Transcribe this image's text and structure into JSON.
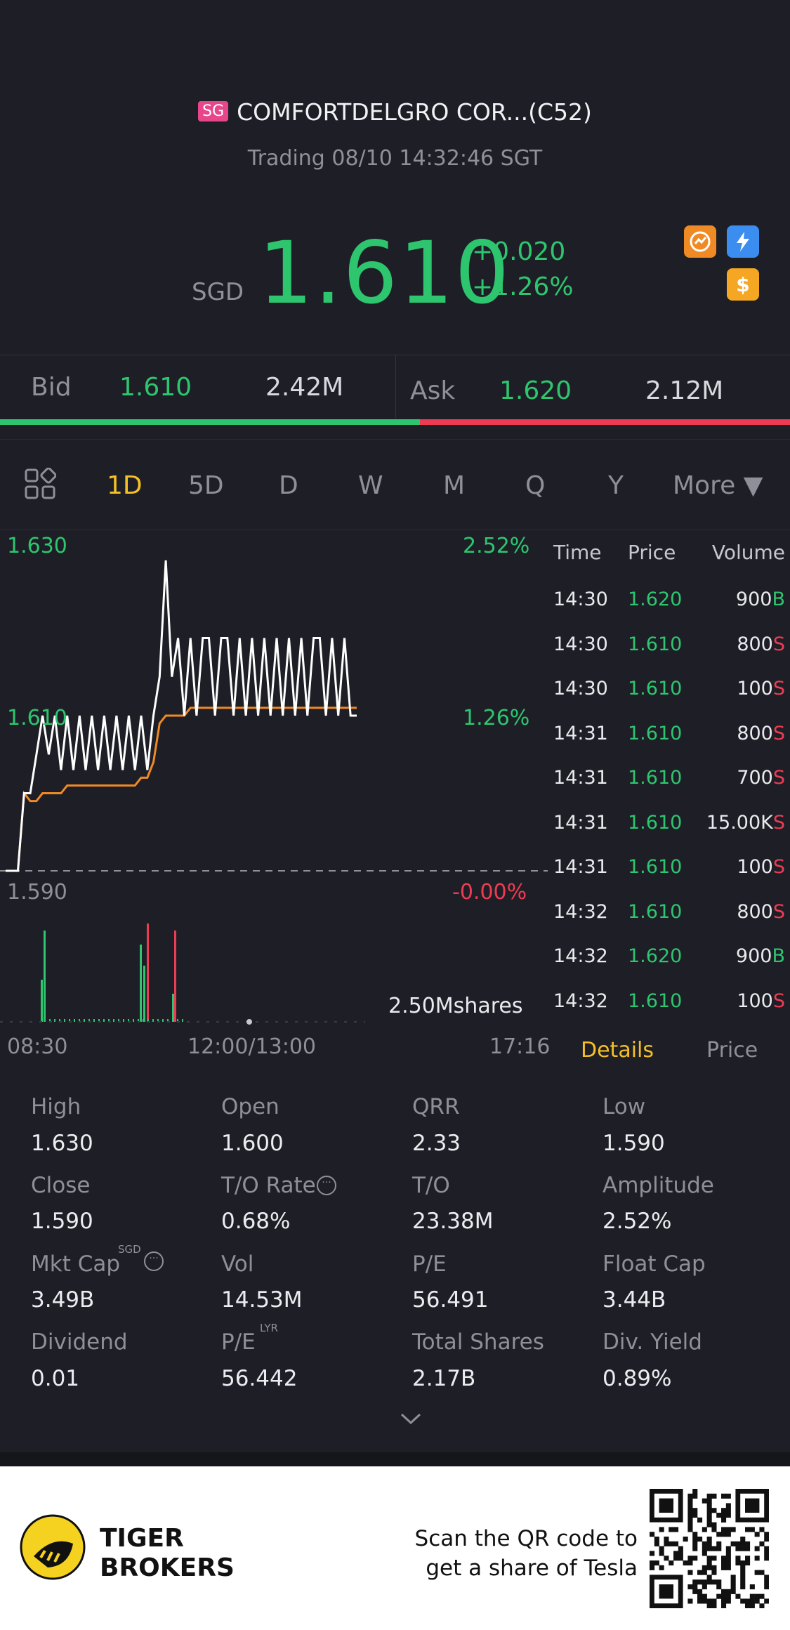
{
  "header": {
    "market_badge": "SG",
    "title": "COMFORTDELGRO COR...(C52)",
    "status": "Trading 08/10 14:32:46 SGT"
  },
  "quote": {
    "currency": "SGD",
    "price": "1.610",
    "change": "+0.020",
    "change_pct": "+1.26%",
    "badge_dollar": "$",
    "colors": {
      "up": "#2dc66f",
      "down": "#ee3b54",
      "accent": "#f5c026"
    }
  },
  "bidask": {
    "bid_label": "Bid",
    "bid_price": "1.610",
    "bid_volume": "2.42M",
    "ask_label": "Ask",
    "ask_price": "1.620",
    "ask_volume": "2.12M"
  },
  "tabs": [
    {
      "label": "1D",
      "active": true
    },
    {
      "label": "5D",
      "active": false
    },
    {
      "label": "D",
      "active": false
    },
    {
      "label": "W",
      "active": false
    },
    {
      "label": "M",
      "active": false
    },
    {
      "label": "Q",
      "active": false
    },
    {
      "label": "Y",
      "active": false
    },
    {
      "label": "More ▼",
      "active": false
    }
  ],
  "chart_data": {
    "type": "line",
    "y_labels": {
      "top": "1.630",
      "mid": "1.610",
      "bottom": "1.590"
    },
    "pct_labels": {
      "top": "2.52%",
      "mid": "1.26%",
      "bottom": "-0.00%"
    },
    "x_labels": {
      "start": "08:30",
      "mid": "12:00/13:00",
      "end": "17:16"
    },
    "volume_label": "2.50Mshares",
    "ylim": [
      1.59,
      1.63
    ],
    "series": [
      {
        "values": [
          1.59,
          1.59,
          1.59,
          1.6,
          1.6,
          1.605,
          1.61,
          1.605,
          1.61,
          1.603,
          1.61,
          1.603,
          1.61,
          1.603,
          1.61,
          1.603,
          1.61,
          1.603,
          1.61,
          1.603,
          1.61,
          1.603,
          1.61,
          1.603,
          1.61,
          1.615,
          1.63,
          1.615,
          1.62,
          1.61,
          1.62,
          1.61,
          1.62,
          1.62,
          1.61,
          1.62,
          1.62,
          1.61,
          1.62,
          1.61,
          1.62,
          1.61,
          1.62,
          1.61,
          1.62,
          1.61,
          1.62,
          1.61,
          1.62,
          1.61,
          1.62,
          1.62,
          1.61,
          1.62,
          1.61,
          1.62,
          1.61,
          1.61
        ]
      },
      {
        "values": [
          1.59,
          1.59,
          1.59,
          1.6,
          1.599,
          1.599,
          1.6,
          1.6,
          1.6,
          1.6,
          1.601,
          1.601,
          1.601,
          1.601,
          1.601,
          1.601,
          1.601,
          1.601,
          1.601,
          1.601,
          1.601,
          1.601,
          1.602,
          1.602,
          1.604,
          1.609,
          1.61,
          1.61,
          1.61,
          1.61,
          1.611,
          1.611,
          1.611,
          1.611,
          1.611,
          1.611,
          1.611,
          1.611,
          1.611,
          1.611,
          1.611,
          1.611,
          1.611,
          1.611,
          1.611,
          1.611,
          1.611,
          1.611,
          1.611,
          1.611,
          1.611,
          1.611,
          1.611,
          1.611,
          1.611,
          1.611,
          1.611,
          1.611
        ]
      }
    ]
  },
  "time_sales": {
    "headers": [
      "Time",
      "Price",
      "Volume"
    ],
    "rows": [
      {
        "time": "14:30",
        "price": "1.620",
        "volume": "900",
        "side": "B"
      },
      {
        "time": "14:30",
        "price": "1.610",
        "volume": "800",
        "side": "S"
      },
      {
        "time": "14:30",
        "price": "1.610",
        "volume": "100",
        "side": "S"
      },
      {
        "time": "14:31",
        "price": "1.610",
        "volume": "800",
        "side": "S"
      },
      {
        "time": "14:31",
        "price": "1.610",
        "volume": "700",
        "side": "S"
      },
      {
        "time": "14:31",
        "price": "1.610",
        "volume": "15.00K",
        "side": "S"
      },
      {
        "time": "14:31",
        "price": "1.610",
        "volume": "100",
        "side": "S"
      },
      {
        "time": "14:32",
        "price": "1.610",
        "volume": "800",
        "side": "S"
      },
      {
        "time": "14:32",
        "price": "1.620",
        "volume": "900",
        "side": "B"
      },
      {
        "time": "14:32",
        "price": "1.610",
        "volume": "100",
        "side": "S"
      }
    ],
    "tab_details": "Details",
    "tab_price": "Price"
  },
  "stats": [
    [
      {
        "label": "High",
        "value": "1.630"
      },
      {
        "label": "Open",
        "value": "1.600"
      },
      {
        "label": "QRR",
        "value": "2.33"
      },
      {
        "label": "Low",
        "value": "1.590"
      }
    ],
    [
      {
        "label": "Close",
        "value": "1.590"
      },
      {
        "label": "T/O Rate",
        "value": "0.68%"
      },
      {
        "label": "T/O",
        "value": "23.38M"
      },
      {
        "label": "Amplitude",
        "value": "2.52%"
      }
    ],
    [
      {
        "label": "Mkt Cap",
        "value": "3.49B",
        "sup": "SGD"
      },
      {
        "label": "Vol",
        "value": "14.53M"
      },
      {
        "label": "P/E",
        "value": "56.491"
      },
      {
        "label": "Float Cap",
        "value": "3.44B"
      }
    ],
    [
      {
        "label": "Dividend",
        "value": "0.01"
      },
      {
        "label": "P/E",
        "value": "56.442",
        "sup": "LYR"
      },
      {
        "label": "Total Shares",
        "value": "2.17B"
      },
      {
        "label": "Div. Yield",
        "value": "0.89%"
      }
    ]
  ],
  "footer": {
    "brand_line1": "TIGER",
    "brand_line2": "BROKERS",
    "promo_line1": "Scan the QR code to",
    "promo_line2": "get a share of Tesla"
  }
}
